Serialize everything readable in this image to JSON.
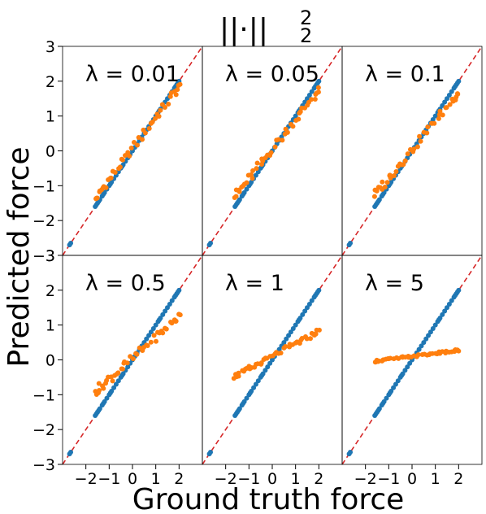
{
  "figure": {
    "title": "||·||",
    "title_sup": "2",
    "title_sub": "2",
    "xlabel": "Ground truth force",
    "ylabel": "Predicted force"
  },
  "colors": {
    "ground_truth_series": "#1f77b4",
    "prediction_series": "#ff7f0e",
    "identity_line": "#d62728"
  },
  "chart_data": {
    "type": "scatter",
    "layout": "grid 2x3",
    "xlim": [
      -3,
      3
    ],
    "ylim": [
      -3,
      3
    ],
    "xticks": [
      -2,
      -1,
      0,
      1,
      2
    ],
    "yticks": [
      -3,
      -2,
      -1,
      0,
      1,
      2,
      3
    ],
    "reference_line": {
      "slope": 1,
      "intercept": 0,
      "style": "dashed"
    },
    "ground_truth_x": [
      -2.7,
      -2.65,
      -1.6,
      -1.55,
      -1.5,
      -1.45,
      -1.4,
      -1.3,
      -1.25,
      -1.2,
      -1.1,
      -1.0,
      -0.95,
      -0.9,
      -0.8,
      -0.7,
      -0.6,
      -0.5,
      -0.45,
      -0.4,
      -0.3,
      -0.2,
      -0.1,
      0.0,
      0.1,
      0.2,
      0.3,
      0.4,
      0.5,
      0.6,
      0.7,
      0.8,
      0.9,
      1.0,
      1.1,
      1.15,
      1.2,
      1.3,
      1.4,
      1.5,
      1.6,
      1.7,
      1.8,
      1.85,
      1.9,
      1.95,
      2.0
    ],
    "panels": [
      {
        "label": "λ = 0.01",
        "lambda": 0.01,
        "slope": 0.9,
        "intercept": 0.05,
        "spread": 0.12
      },
      {
        "label": "λ = 0.05",
        "lambda": 0.05,
        "slope": 0.85,
        "intercept": 0.05,
        "spread": 0.12
      },
      {
        "label": "λ = 0.1",
        "lambda": 0.1,
        "slope": 0.82,
        "intercept": 0.05,
        "spread": 0.12
      },
      {
        "label": "λ = 0.5",
        "lambda": 0.5,
        "slope": 0.6,
        "intercept": 0.05,
        "spread": 0.12
      },
      {
        "label": "λ = 1",
        "lambda": 1,
        "slope": 0.36,
        "intercept": 0.1,
        "spread": 0.07
      },
      {
        "label": "λ = 5",
        "lambda": 5,
        "slope": 0.085,
        "intercept": 0.1,
        "spread": 0.03
      }
    ]
  }
}
